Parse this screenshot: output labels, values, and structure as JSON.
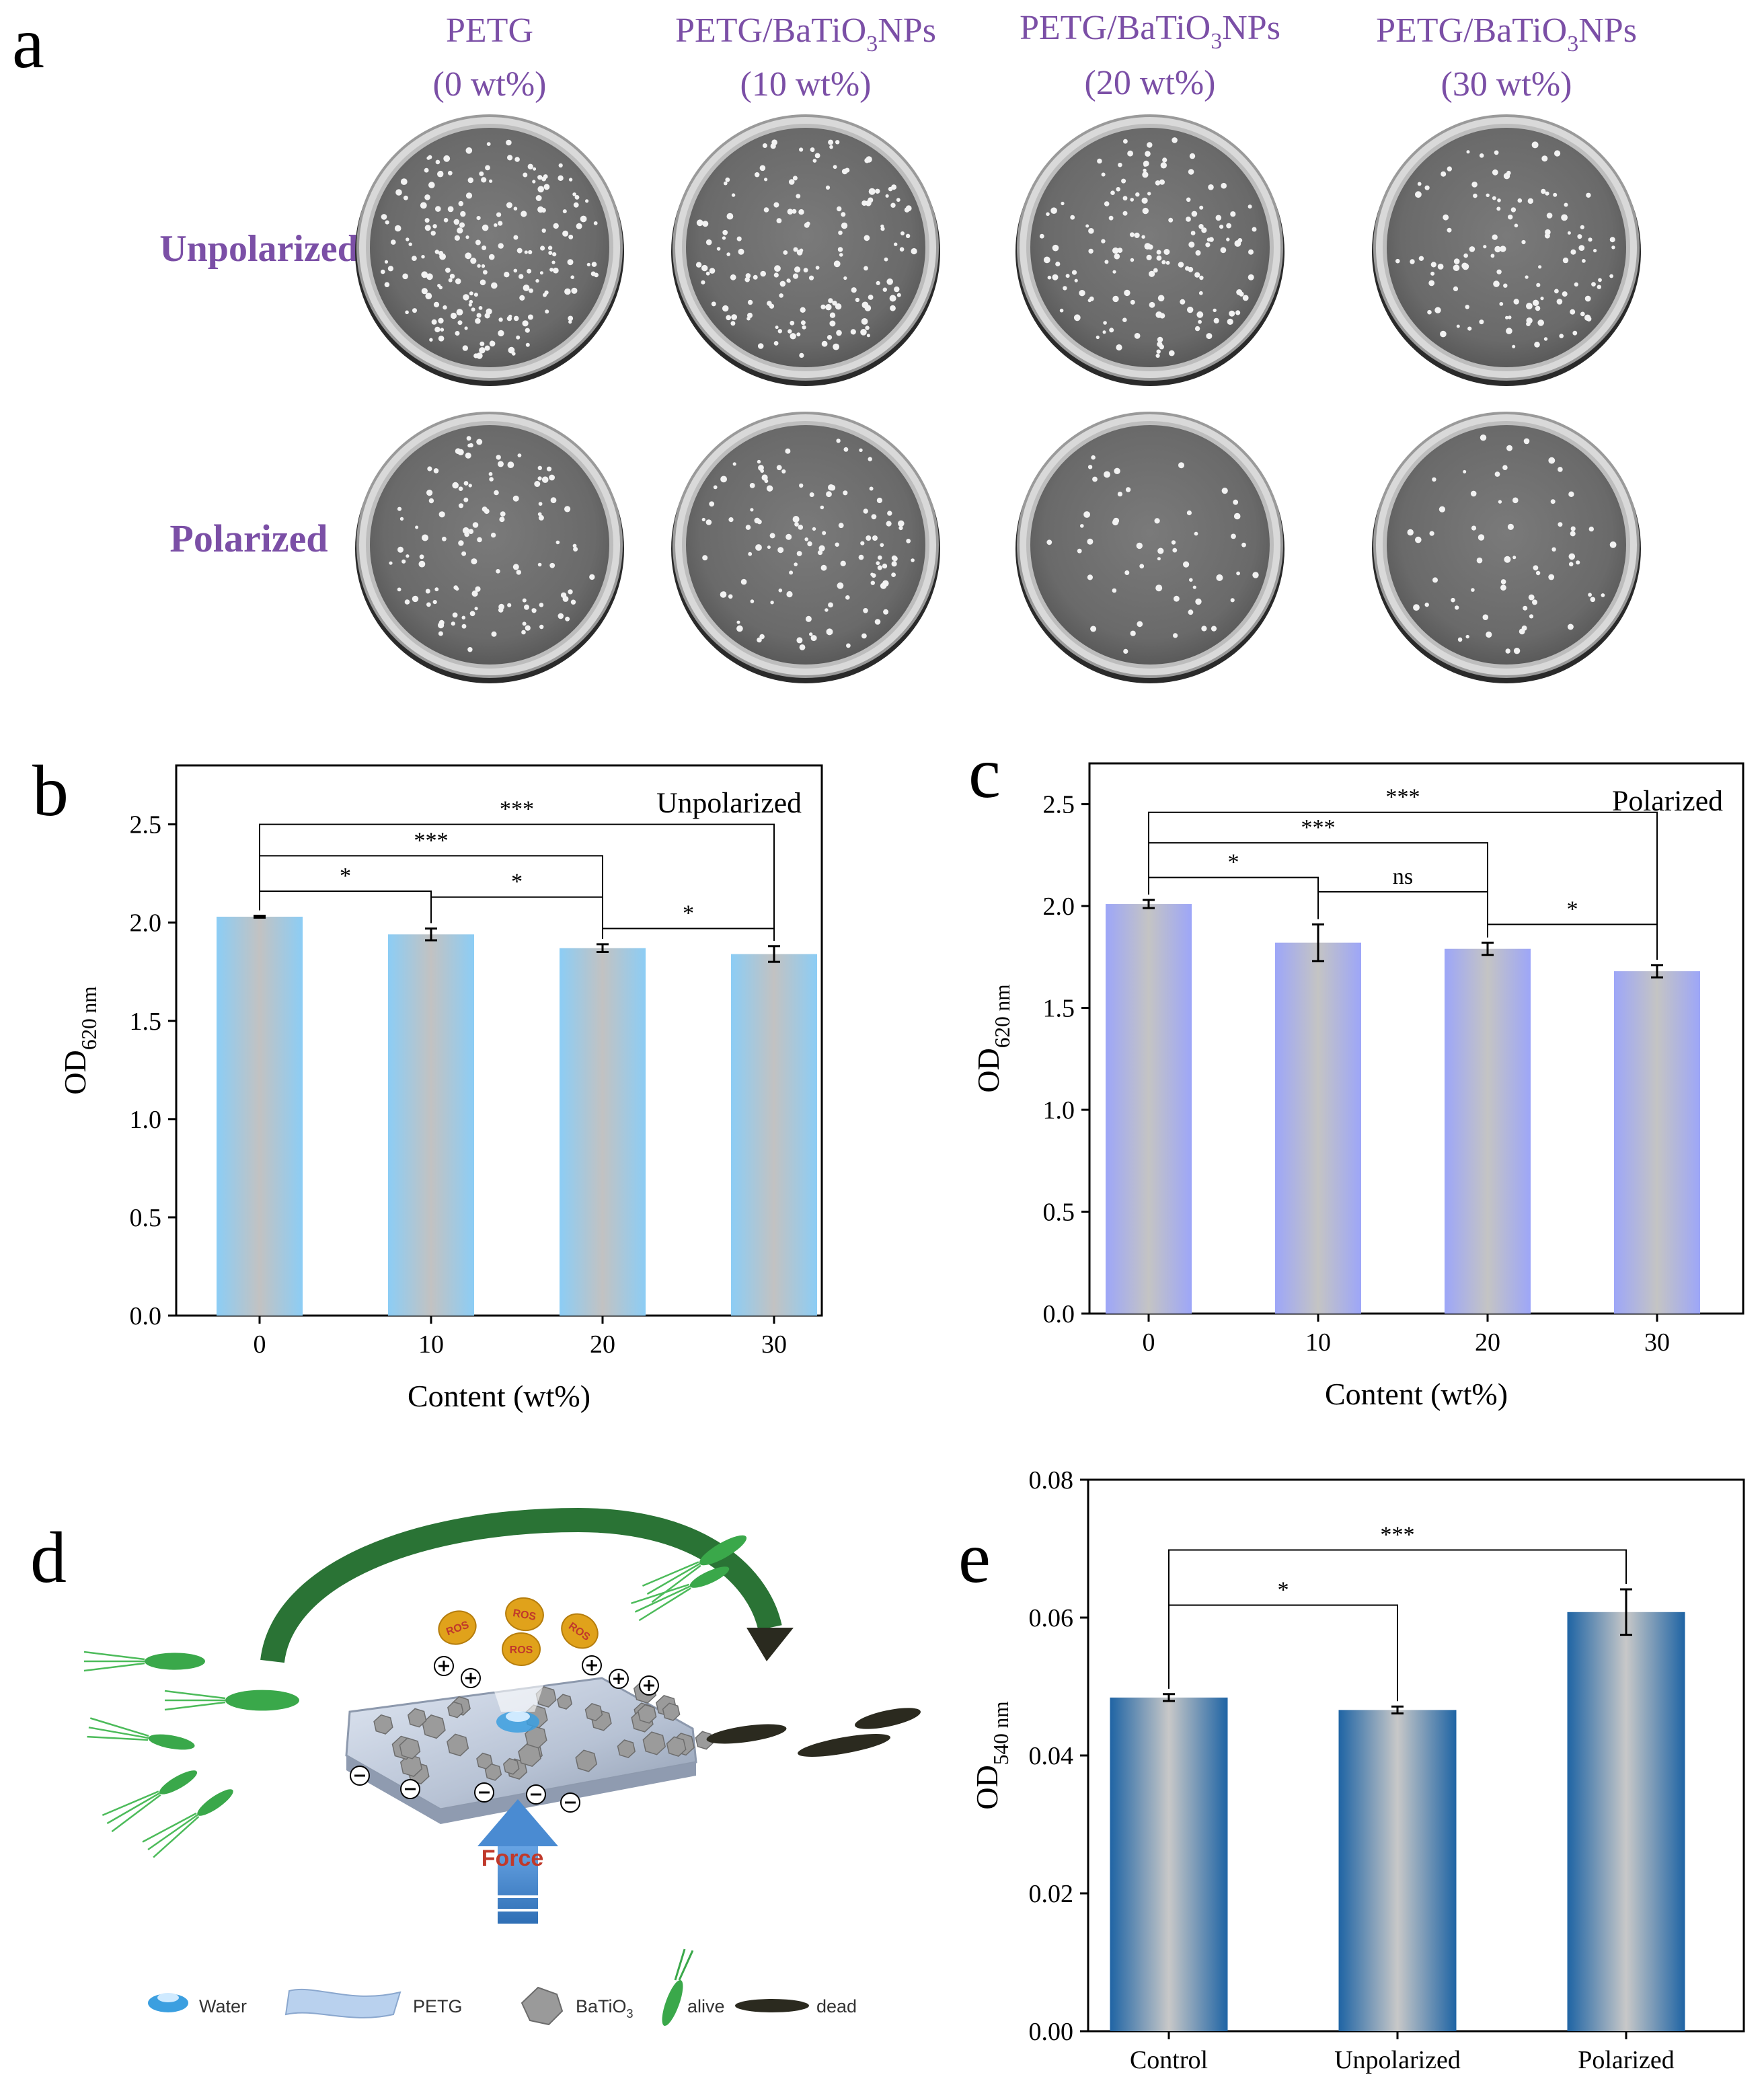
{
  "panel_letters": {
    "a": "a",
    "b": "b",
    "c": "c",
    "d": "d",
    "e": "e"
  },
  "panel_a": {
    "columns": [
      {
        "line1": "PETG",
        "line2": "(0 wt%)"
      },
      {
        "line1": "PETG/BaTiO",
        "sub": "3",
        "line1b": "NPs",
        "line2": "(10 wt%)"
      },
      {
        "line1": "PETG/BaTiO",
        "sub": "3",
        "line1b": "NPs",
        "line2": "(20 wt%)"
      },
      {
        "line1": "PETG/BaTiO",
        "sub": "3",
        "line1b": "NPs",
        "line2": "(30 wt%)"
      }
    ],
    "rows": [
      "Unpolarized",
      "Polarized"
    ],
    "colony_counts": [
      [
        190,
        150,
        140,
        110
      ],
      [
        110,
        110,
        50,
        60
      ]
    ],
    "label_color": "#7b4fa6"
  },
  "chart_data": [
    {
      "id": "b",
      "type": "bar",
      "categories": [
        "0",
        "10",
        "20",
        "30"
      ],
      "values": [
        2.03,
        1.94,
        1.87,
        1.84
      ],
      "errors": [
        0.005,
        0.03,
        0.02,
        0.04
      ],
      "ylim": [
        0,
        2.8
      ],
      "yticks": [
        "0.0",
        "0.5",
        "1.0",
        "1.5",
        "2.0",
        "2.5"
      ],
      "ylabel_main": "OD",
      "ylabel_sub": "620 nm",
      "xlabel": "Content (wt%)",
      "legend_text": "Unpolarized",
      "significance": [
        {
          "from": 0,
          "to": 3,
          "level": 2.5,
          "label": "***"
        },
        {
          "from": 0,
          "to": 2,
          "level": 2.34,
          "label": "***"
        },
        {
          "from": 0,
          "to": 1,
          "level": 2.16,
          "label": "*"
        },
        {
          "from": 1,
          "to": 2,
          "level": 2.13,
          "label": "*"
        },
        {
          "from": 2,
          "to": 3,
          "level": 1.97,
          "label": "*"
        }
      ],
      "bar_edge": "#8ccdf5",
      "bar_center": "#c2c2c2"
    },
    {
      "id": "c",
      "type": "bar",
      "categories": [
        "0",
        "10",
        "20",
        "30"
      ],
      "values": [
        2.01,
        1.82,
        1.79,
        1.68
      ],
      "errors": [
        0.02,
        0.09,
        0.03,
        0.03
      ],
      "ylim": [
        0,
        2.7
      ],
      "yticks": [
        "0.0",
        "0.5",
        "1.0",
        "1.5",
        "2.0",
        "2.5"
      ],
      "ylabel_main": "OD",
      "ylabel_sub": "620 nm",
      "xlabel": "Content (wt%)",
      "legend_text": "Polarized",
      "significance": [
        {
          "from": 0,
          "to": 3,
          "level": 2.46,
          "label": "***"
        },
        {
          "from": 0,
          "to": 2,
          "level": 2.31,
          "label": "***"
        },
        {
          "from": 0,
          "to": 1,
          "level": 2.14,
          "label": "*"
        },
        {
          "from": 1,
          "to": 2,
          "level": 2.07,
          "label": "ns"
        },
        {
          "from": 2,
          "to": 3,
          "level": 1.91,
          "label": "*"
        }
      ],
      "bar_edge": "#9da6f8",
      "bar_center": "#c4c4c4"
    },
    {
      "id": "e",
      "type": "bar",
      "categories": [
        "Control",
        "Unpolarized",
        "Polarized"
      ],
      "values": [
        0.0484,
        0.0466,
        0.0608
      ],
      "errors": [
        0.0005,
        0.0005,
        0.0033
      ],
      "ylim": [
        0,
        0.08
      ],
      "yticks": [
        "0.00",
        "0.02",
        "0.04",
        "0.06",
        "0.08"
      ],
      "ylabel_main": "OD",
      "ylabel_sub": "540 nm",
      "xlabel": "",
      "significance": [
        {
          "from": 0,
          "to": 2,
          "level": 0.0698,
          "label": "***"
        },
        {
          "from": 0,
          "to": 1,
          "level": 0.0618,
          "label": "*"
        }
      ],
      "bar_edge": "#1f64a4",
      "bar_center": "#c8c8c8"
    }
  ],
  "panel_d": {
    "ros": "ROS",
    "force": "Force",
    "legend": {
      "water": "Water",
      "petg": "PETG",
      "batio": "BaTiO",
      "batio_sub": "3",
      "alive": "alive",
      "dead": "dead"
    },
    "colors": {
      "alive": "#3aa84a",
      "dead": "#2b2a1f",
      "arrow": "#1f6b2a",
      "force_arrow": "#3f7fc4",
      "force_text": "#c0392b",
      "ros": "#e0a21b"
    }
  }
}
